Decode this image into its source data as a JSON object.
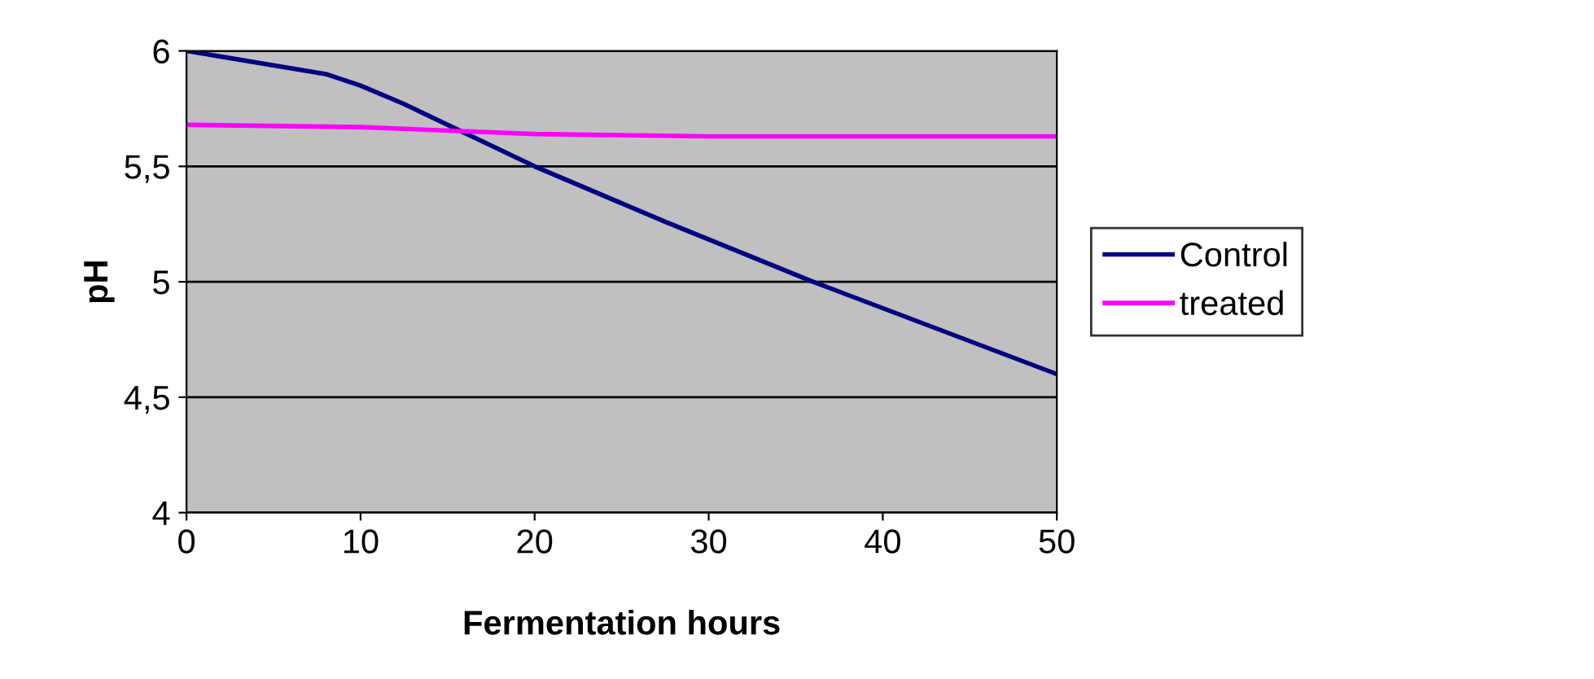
{
  "chart_data": {
    "type": "line",
    "xlabel": "Fermentation hours",
    "ylabel": "pH",
    "xlim": [
      0,
      50
    ],
    "xticks": [
      0,
      10,
      20,
      30,
      40,
      50
    ],
    "ylim": [
      4,
      6
    ],
    "yticks": [
      4,
      {
        "value": 4.5,
        "label": "4,5"
      },
      5,
      {
        "value": 5.5,
        "label": "5,5"
      },
      6
    ],
    "grid": "y",
    "legend": "right",
    "marker": "none",
    "line_style": "solid",
    "series": [
      {
        "name": "Control",
        "color": "#000080",
        "x": [
          0,
          8,
          10,
          12.5,
          20,
          27.5,
          36,
          50
        ],
        "values": [
          6.0,
          5.9,
          5.85,
          5.77,
          5.5,
          5.26,
          5.0,
          4.6
        ]
      },
      {
        "name": "treated",
        "color": "#ff00ff",
        "x": [
          0,
          10,
          20,
          30,
          50
        ],
        "values": [
          5.68,
          5.67,
          5.64,
          5.63,
          5.63
        ]
      }
    ]
  }
}
